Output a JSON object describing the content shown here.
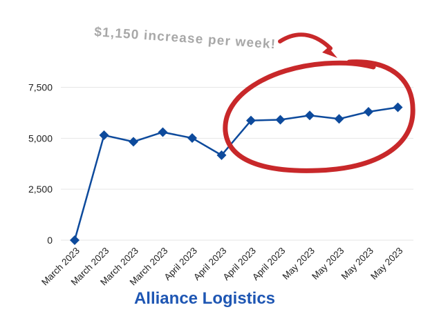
{
  "colors": {
    "line": "#0d4a9c",
    "marker": "#0d4a9c",
    "grid": "#e6e6e6",
    "axis_text": "#222222",
    "annotation_circle": "#c8282a",
    "annotation_text": "#a8a8a8",
    "footer_text": "#1e56b3"
  },
  "annotation": {
    "text": "$1,150 increase per week!"
  },
  "footer": {
    "title": "Alliance Logistics"
  },
  "chart_data": {
    "type": "line",
    "title": "",
    "xlabel": "",
    "ylabel": "",
    "categories": [
      "March 2023",
      "March 2023",
      "March 2023",
      "March 2023",
      "April 2023",
      "April 2023",
      "April 2023",
      "April 2023",
      "May 2023",
      "May 2023",
      "May 2023",
      "May 2023"
    ],
    "series": [
      {
        "values": [
          0,
          5150,
          4830,
          5300,
          5010,
          4170,
          5870,
          5910,
          6120,
          5950,
          6300,
          6520
        ]
      }
    ],
    "ylim": [
      0,
      8500
    ],
    "yticks": [
      0,
      2500,
      5000,
      7500
    ],
    "ytick_labels": [
      "0",
      "2,500",
      "5,000",
      "7,500"
    ],
    "grid": true,
    "legend": "none",
    "marker": "diamond"
  }
}
